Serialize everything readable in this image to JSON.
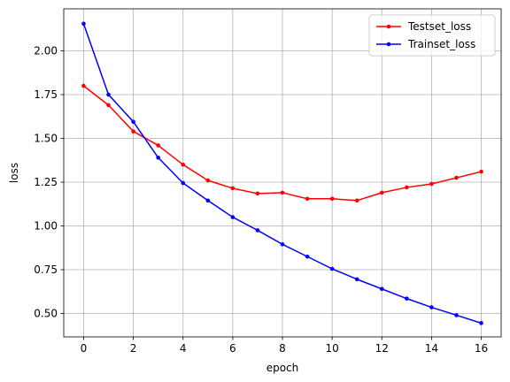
{
  "chart_data": {
    "type": "line",
    "title": "",
    "xlabel": "epoch",
    "ylabel": "loss",
    "xlim": [
      -0.8,
      16.8
    ],
    "ylim": [
      0.366,
      2.24
    ],
    "xticks": [
      0,
      2,
      4,
      6,
      8,
      10,
      12,
      14,
      16
    ],
    "yticks": [
      0.5,
      0.75,
      1.0,
      1.25,
      1.5,
      1.75,
      2.0
    ],
    "ytick_labels": [
      "0.50",
      "0.75",
      "1.00",
      "1.25",
      "1.50",
      "1.75",
      "2.00"
    ],
    "grid": true,
    "legend_position": "top-right",
    "x": [
      0,
      1,
      2,
      3,
      4,
      5,
      6,
      7,
      8,
      9,
      10,
      11,
      12,
      13,
      14,
      15,
      16
    ],
    "series": [
      {
        "name": "Testset_loss",
        "color": "#ff0000",
        "marker": "point",
        "values": [
          1.8,
          1.69,
          1.54,
          1.46,
          1.35,
          1.26,
          1.215,
          1.185,
          1.19,
          1.155,
          1.155,
          1.145,
          1.19,
          1.22,
          1.24,
          1.275,
          1.31
        ]
      },
      {
        "name": "Trainset_loss",
        "color": "#0000ff",
        "marker": "point",
        "values": [
          2.155,
          1.75,
          1.595,
          1.39,
          1.245,
          1.145,
          1.05,
          0.975,
          0.895,
          0.825,
          0.755,
          0.695,
          0.64,
          0.585,
          0.535,
          0.49,
          0.445
        ]
      }
    ]
  }
}
